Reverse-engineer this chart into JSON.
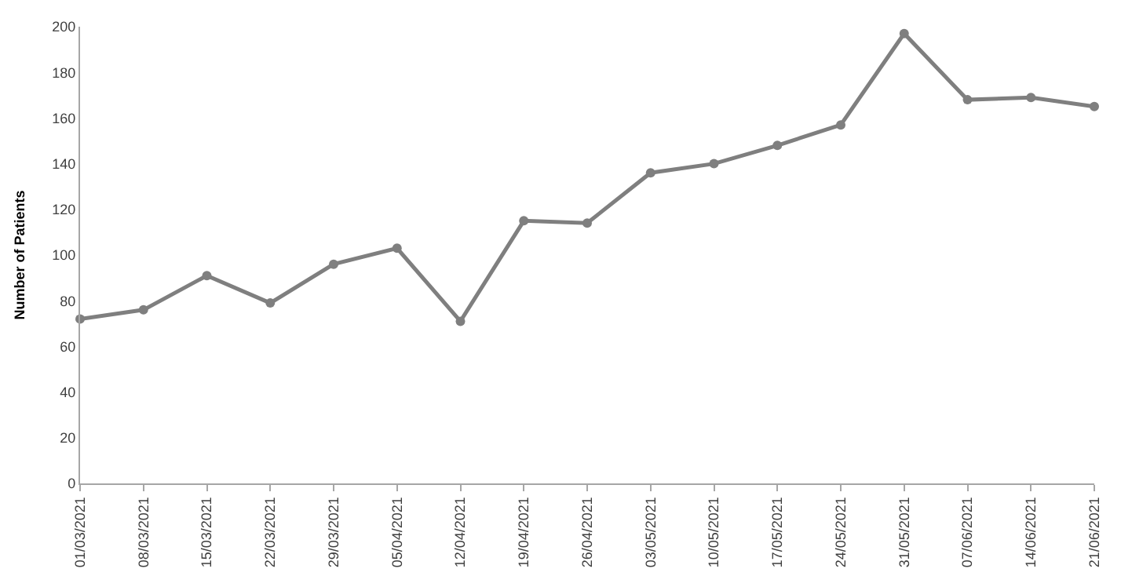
{
  "chart_data": {
    "type": "line",
    "ylabel": "Number of Patients",
    "categories": [
      "01/03/2021",
      "08/03/2021",
      "15/03/2021",
      "22/03/2021",
      "29/03/2021",
      "05/04/2021",
      "12/04/2021",
      "19/04/2021",
      "26/04/2021",
      "03/05/2021",
      "10/05/2021",
      "17/05/2021",
      "24/05/2021",
      "31/05/2021",
      "07/06/2021",
      "14/06/2021",
      "21/06/2021"
    ],
    "series": [
      {
        "color": "#7f7f7f",
        "values": [
          72,
          76,
          91,
          79,
          96,
          103,
          71,
          115,
          114,
          136,
          140,
          148,
          157,
          197,
          168,
          169,
          165
        ]
      }
    ],
    "ylim": [
      0,
      200
    ],
    "yticks": [
      0,
      20,
      40,
      60,
      80,
      100,
      120,
      140,
      160,
      180,
      200
    ],
    "grid": false,
    "marker": "circle",
    "line_style": "solid"
  }
}
